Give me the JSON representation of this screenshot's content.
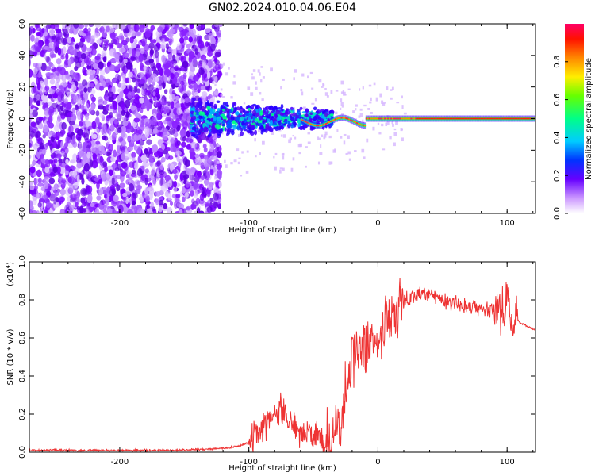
{
  "title": "GN02.2024.010.04.06.E04",
  "chart_data": [
    {
      "type": "heatmap",
      "xlabel": "Height of straight line (km)",
      "ylabel": "Frequency (Hz)",
      "xlim": [
        -270,
        122
      ],
      "ylim": [
        -60,
        60
      ],
      "x_ticks": [
        -200,
        -100,
        0,
        100
      ],
      "y_ticks": [
        -60,
        -40,
        -20,
        0,
        20,
        40,
        60
      ],
      "colorbar": {
        "label": "Normalized spectral amplitude",
        "range": [
          0,
          1
        ],
        "ticks": [
          0.0,
          0.2,
          0.4,
          0.6,
          0.8
        ]
      },
      "regions": [
        {
          "x_range": [
            -270,
            -122
          ],
          "freq_range": [
            -60,
            60
          ],
          "amplitude": 0.1
        },
        {
          "x_range": [
            -145,
            -40
          ],
          "freq_range": [
            -15,
            15
          ],
          "amplitude": 0.3
        },
        {
          "x_range": [
            -40,
            122
          ],
          "freq_center": 0,
          "amplitude": 0.9
        }
      ]
    },
    {
      "type": "line",
      "xlabel": "Height of straight line (km)",
      "ylabel": "SNR (10 * v/v)",
      "y_multiplier": "(x10",
      "y_multiplier_exp": "4",
      "y_multiplier_close": ")",
      "xlim": [
        -270,
        122
      ],
      "ylim": [
        0,
        1.0
      ],
      "x_ticks": [
        -200,
        -100,
        0,
        100
      ],
      "y_ticks": [
        0.0,
        0.2,
        0.4,
        0.6,
        0.8,
        1.0
      ],
      "color": "#ee3333",
      "series": [
        {
          "x": [
            -270,
            -240,
            -200,
            -160,
            -135,
            -120,
            -110,
            -100,
            -90,
            -80,
            -75,
            -70,
            -60,
            -50,
            -40,
            -35,
            -30,
            -25,
            -20,
            -15,
            -10,
            -5,
            0,
            10,
            20,
            30,
            40,
            50,
            60,
            70,
            80,
            90,
            100,
            105,
            110,
            122
          ],
          "y": [
            0.01,
            0.01,
            0.01,
            0.01,
            0.015,
            0.02,
            0.03,
            0.05,
            0.12,
            0.2,
            0.22,
            0.15,
            0.1,
            0.08,
            0.07,
            0.08,
            0.12,
            0.3,
            0.5,
            0.55,
            0.55,
            0.58,
            0.6,
            0.72,
            0.8,
            0.83,
            0.83,
            0.8,
            0.78,
            0.77,
            0.76,
            0.75,
            0.74,
            0.72,
            0.68,
            0.64
          ]
        }
      ]
    }
  ]
}
